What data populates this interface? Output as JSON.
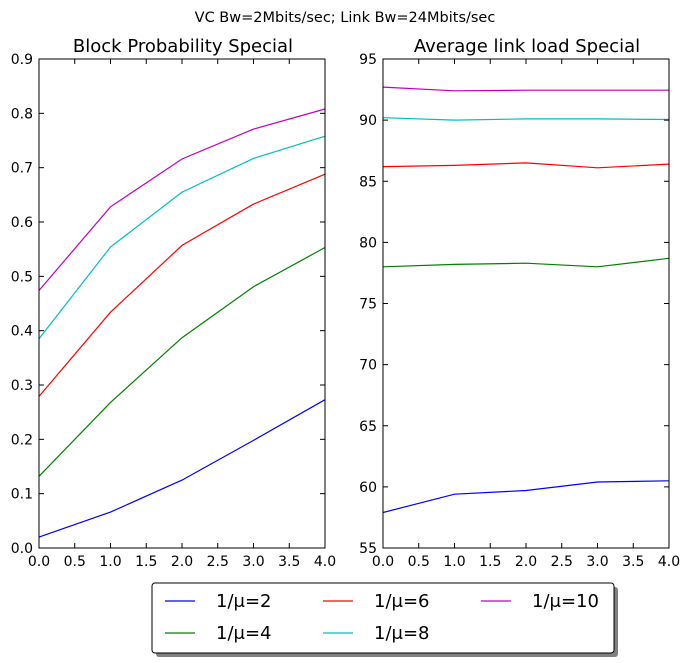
{
  "figure": {
    "suptitle": "VC Bw=2Mbits/sec; Link Bw=24Mbits/sec"
  },
  "chart_data": [
    {
      "type": "line",
      "title": "Block Probability Special",
      "xlabel": "",
      "ylabel": "",
      "xlim": [
        0,
        4
      ],
      "ylim": [
        0,
        0.9
      ],
      "xticks": [
        "0.0",
        "0.5",
        "1.0",
        "1.5",
        "2.0",
        "2.5",
        "3.0",
        "3.5",
        "4.0"
      ],
      "yticks": [
        "0.0",
        "0.1",
        "0.2",
        "0.3",
        "0.4",
        "0.5",
        "0.6",
        "0.7",
        "0.8",
        "0.9"
      ],
      "grid": false,
      "x": [
        0,
        1,
        2,
        3,
        4
      ],
      "series": [
        {
          "name": "1/μ=2",
          "color": "#0000ff",
          "values": [
            0.02,
            0.066,
            0.125,
            0.198,
            0.273
          ]
        },
        {
          "name": "1/μ=4",
          "color": "#008000",
          "values": [
            0.132,
            0.268,
            0.387,
            0.481,
            0.553
          ]
        },
        {
          "name": "1/μ=6",
          "color": "#ff0000",
          "values": [
            0.279,
            0.434,
            0.557,
            0.633,
            0.688
          ]
        },
        {
          "name": "1/μ=8",
          "color": "#00bfbf",
          "values": [
            0.385,
            0.554,
            0.655,
            0.717,
            0.758
          ]
        },
        {
          "name": "1/μ=10",
          "color": "#bf00bf",
          "values": [
            0.474,
            0.628,
            0.716,
            0.771,
            0.808
          ]
        }
      ]
    },
    {
      "type": "line",
      "title": "Average link load Special",
      "xlabel": "",
      "ylabel": "",
      "xlim": [
        0,
        4
      ],
      "ylim": [
        55,
        95
      ],
      "xticks": [
        "0.0",
        "0.5",
        "1.0",
        "1.5",
        "2.0",
        "2.5",
        "3.0",
        "3.5",
        "4.0"
      ],
      "yticks": [
        "55",
        "60",
        "65",
        "70",
        "75",
        "80",
        "85",
        "90",
        "95"
      ],
      "grid": false,
      "x": [
        0,
        1,
        2,
        3,
        4
      ],
      "series": [
        {
          "name": "1/μ=2",
          "color": "#0000ff",
          "values": [
            57.9,
            59.4,
            59.7,
            60.4,
            60.5
          ]
        },
        {
          "name": "1/μ=4",
          "color": "#008000",
          "values": [
            78.0,
            78.2,
            78.3,
            78.0,
            78.7
          ]
        },
        {
          "name": "1/μ=6",
          "color": "#ff0000",
          "values": [
            86.2,
            86.3,
            86.5,
            86.1,
            86.4
          ]
        },
        {
          "name": "1/μ=8",
          "color": "#00bfbf",
          "values": [
            90.2,
            90.0,
            90.1,
            90.1,
            90.05
          ]
        },
        {
          "name": "1/μ=10",
          "color": "#bf00bf",
          "values": [
            92.7,
            92.4,
            92.45,
            92.45,
            92.45
          ]
        }
      ]
    }
  ],
  "legend": {
    "placement": "bottom-center",
    "columns": 3,
    "entries": [
      {
        "label": "1/μ=2",
        "color": "#0000ff"
      },
      {
        "label": "1/μ=4",
        "color": "#008000"
      },
      {
        "label": "1/μ=6",
        "color": "#ff0000"
      },
      {
        "label": "1/μ=8",
        "color": "#00bfbf"
      },
      {
        "label": "1/μ=10",
        "color": "#bf00bf"
      }
    ]
  }
}
